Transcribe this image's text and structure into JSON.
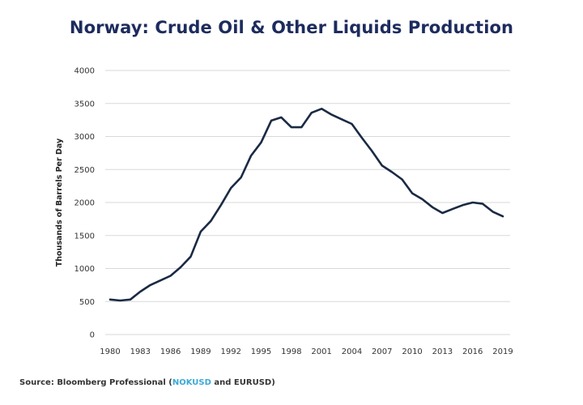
{
  "chart_data": {
    "type": "line",
    "title": "Norway: Crude Oil & Other Liquids Production",
    "xlabel": "",
    "ylabel": "Thousands of Barrels Per Day",
    "xlim": [
      1980,
      2019
    ],
    "ylim": [
      0,
      4000
    ],
    "grid": true,
    "legend": "none",
    "x_ticks": [
      "1980",
      "1983",
      "1986",
      "1989",
      "1992",
      "1995",
      "1998",
      "2001",
      "2004",
      "2007",
      "2010",
      "2013",
      "2016",
      "2019"
    ],
    "y_ticks": [
      "0",
      "500",
      "1000",
      "1500",
      "2000",
      "2500",
      "3000",
      "3500",
      "4000"
    ],
    "series": [
      {
        "name": "Norway Crude Oil & Other Liquids Production",
        "color": "#1a2a44",
        "x": [
          1980,
          1981,
          1982,
          1983,
          1984,
          1985,
          1986,
          1987,
          1988,
          1989,
          1990,
          1991,
          1992,
          1993,
          1994,
          1995,
          1996,
          1997,
          1998,
          1999,
          2000,
          2001,
          2002,
          2003,
          2004,
          2005,
          2006,
          2007,
          2008,
          2009,
          2010,
          2011,
          2012,
          2013,
          2014,
          2015,
          2016,
          2017,
          2018,
          2019
        ],
        "values": [
          530,
          515,
          530,
          650,
          750,
          820,
          890,
          1020,
          1180,
          1560,
          1720,
          1960,
          2220,
          2380,
          2710,
          2910,
          3240,
          3290,
          3140,
          3140,
          3360,
          3420,
          3330,
          3260,
          3190,
          2980,
          2780,
          2560,
          2460,
          2350,
          2140,
          2050,
          1930,
          1840,
          1900,
          1960,
          2000,
          1980,
          1860,
          1790
        ]
      }
    ]
  },
  "source": {
    "prefix": "Source: Bloomberg Professional (",
    "link": "NOKUSD",
    "suffix": " and EURUSD)"
  },
  "colors": {
    "title": "#1d2b5e",
    "line": "#1a2a44",
    "grid": "#d9d9d9",
    "link": "#3ba9d6"
  }
}
